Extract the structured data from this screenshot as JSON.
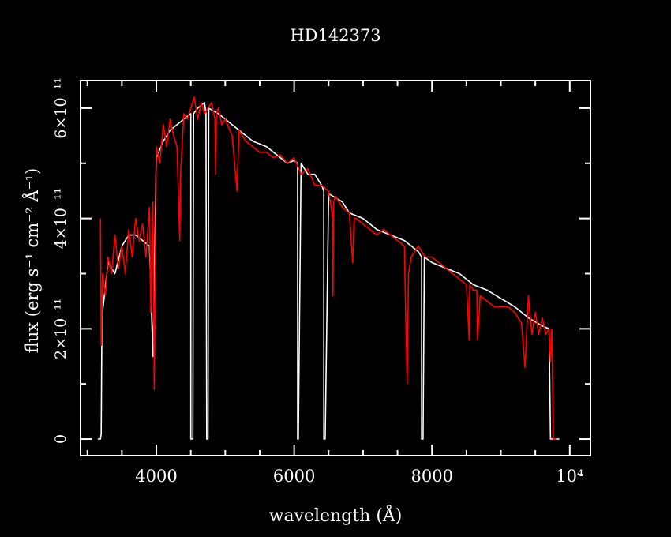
{
  "chart_data": {
    "type": "line",
    "title": "HD142373",
    "xlabel": "wavelength (Å)",
    "ylabel": "flux (erg s⁻¹ cm⁻² Å⁻¹)",
    "xlim": [
      2900,
      10300
    ],
    "ylim": [
      -0.3,
      6.5
    ],
    "y_scale_label": "×10⁻¹¹",
    "x_ticks": [
      {
        "value": 4000,
        "label": "4000"
      },
      {
        "value": 6000,
        "label": "6000"
      },
      {
        "value": 8000,
        "label": "8000"
      },
      {
        "value": 10000,
        "label": "10⁴"
      }
    ],
    "y_ticks": [
      {
        "value": 0,
        "label": "0"
      },
      {
        "value": 2,
        "label": "2×10⁻¹¹"
      },
      {
        "value": 4,
        "label": "4×10⁻¹¹"
      },
      {
        "value": 6,
        "label": "6×10⁻¹¹"
      }
    ],
    "series": [
      {
        "color": "#ffffff",
        "x": [
          3150,
          3190,
          3200,
          3210,
          3300,
          3400,
          3500,
          3600,
          3700,
          3800,
          3900,
          3950,
          4000,
          4100,
          4200,
          4300,
          4400,
          4500,
          4500,
          4530,
          4540,
          4600,
          4700,
          4720,
          4730,
          4750,
          4760,
          4900,
          5000,
          5200,
          5400,
          5600,
          5800,
          5900,
          6000,
          6050,
          6050,
          6060,
          6100,
          6200,
          6300,
          6400,
          6430,
          6430,
          6450,
          6500,
          6700,
          6800,
          7000,
          7200,
          7400,
          7600,
          7800,
          7850,
          7850,
          7870,
          7890,
          7890,
          8000,
          8200,
          8400,
          8600,
          8800,
          9000,
          9200,
          9400,
          9600,
          9700,
          9720,
          9750,
          9800,
          9850
        ],
        "y": [
          0,
          0,
          0.1,
          2.2,
          3.2,
          3.0,
          3.5,
          3.7,
          3.7,
          3.6,
          3.5,
          1.5,
          5.1,
          5.4,
          5.6,
          5.7,
          5.8,
          5.9,
          0,
          0,
          5.9,
          6.0,
          6.1,
          5.9,
          0,
          0,
          6.0,
          5.9,
          5.8,
          5.6,
          5.4,
          5.3,
          5.1,
          5.0,
          5.05,
          5.0,
          0,
          0,
          5.0,
          4.8,
          4.8,
          4.6,
          4.5,
          0,
          0,
          4.45,
          4.3,
          4.1,
          4.0,
          3.8,
          3.7,
          3.6,
          3.4,
          3.3,
          0,
          0,
          3.3,
          3.3,
          3.2,
          3.1,
          3.0,
          2.8,
          2.7,
          2.55,
          2.4,
          2.2,
          2.05,
          2.0,
          0,
          0,
          0,
          0
        ]
      },
      {
        "color": "#ff0000",
        "x": [
          3190,
          3200,
          3220,
          3260,
          3300,
          3350,
          3400,
          3450,
          3500,
          3550,
          3600,
          3650,
          3700,
          3750,
          3800,
          3850,
          3900,
          3920,
          3950,
          3970,
          4000,
          4050,
          4100,
          4150,
          4200,
          4250,
          4300,
          4340,
          4350,
          4400,
          4450,
          4500,
          4550,
          4600,
          4650,
          4700,
          4750,
          4800,
          4850,
          4861,
          4870,
          4900,
          4950,
          5000,
          5100,
          5170,
          5200,
          5300,
          5400,
          5500,
          5600,
          5700,
          5800,
          5900,
          6000,
          6100,
          6200,
          6300,
          6400,
          6500,
          6560,
          6563,
          6570,
          6600,
          6700,
          6800,
          6850,
          6870,
          6900,
          7000,
          7100,
          7200,
          7300,
          7400,
          7500,
          7600,
          7620,
          7640,
          7660,
          7700,
          7800,
          7900,
          8000,
          8100,
          8200,
          8300,
          8400,
          8500,
          8540,
          8550,
          8600,
          8650,
          8662,
          8700,
          8800,
          8900,
          9000,
          9100,
          9200,
          9300,
          9350,
          9400,
          9450,
          9500,
          9550,
          9600,
          9650,
          9700,
          9720,
          9740,
          9760,
          9800
        ],
        "y": [
          4.0,
          1.7,
          3.0,
          2.6,
          3.3,
          3.0,
          3.7,
          3.1,
          3.5,
          3.0,
          3.8,
          3.3,
          4.0,
          3.6,
          3.9,
          3.3,
          4.2,
          2.3,
          4.3,
          0.9,
          5.3,
          5.0,
          5.7,
          5.3,
          5.8,
          5.5,
          5.3,
          3.6,
          4.8,
          5.9,
          5.8,
          6.0,
          6.2,
          5.8,
          6.1,
          5.9,
          6.0,
          6.1,
          5.8,
          4.8,
          5.9,
          6.0,
          5.7,
          5.8,
          5.5,
          4.5,
          5.6,
          5.4,
          5.3,
          5.2,
          5.2,
          5.1,
          5.15,
          5.0,
          5.1,
          4.8,
          4.9,
          4.6,
          4.6,
          4.5,
          4.0,
          2.6,
          4.3,
          4.4,
          4.2,
          4.1,
          3.2,
          4.0,
          4.0,
          3.9,
          3.8,
          3.7,
          3.8,
          3.7,
          3.6,
          3.5,
          2.2,
          1.0,
          3.0,
          3.3,
          3.5,
          3.3,
          3.3,
          3.2,
          3.1,
          3.0,
          2.9,
          2.8,
          1.8,
          2.8,
          2.7,
          2.7,
          1.8,
          2.6,
          2.5,
          2.4,
          2.4,
          2.4,
          2.3,
          2.1,
          1.3,
          2.6,
          1.9,
          2.3,
          1.9,
          2.2,
          1.9,
          2.0,
          1.4,
          2.0,
          0,
          0
        ]
      }
    ],
    "grid": false,
    "legend": "none"
  }
}
